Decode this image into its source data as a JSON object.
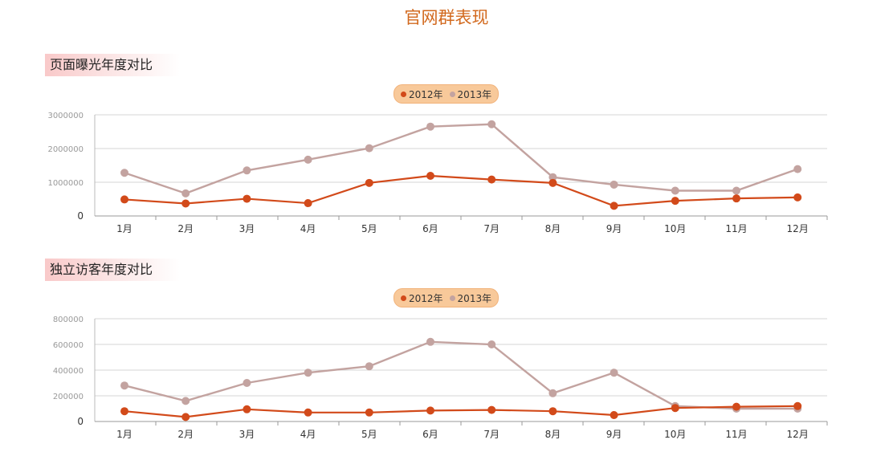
{
  "page_title": "官网群表现",
  "colors": {
    "series_2012": "#d24a1a",
    "series_2013": "#c3a3a0",
    "legend_bg": "#f8c99a"
  },
  "chart_data": [
    {
      "section_title": "页面曝光年度对比",
      "type": "line",
      "categories": [
        "1月",
        "2月",
        "3月",
        "4月",
        "5月",
        "6月",
        "7月",
        "8月",
        "9月",
        "10月",
        "11月",
        "12月"
      ],
      "ylim": [
        0,
        3000000
      ],
      "ytick_labels": [
        "0",
        "1000000",
        "2000000",
        "3000000"
      ],
      "grid": true,
      "legend_position": "top-center",
      "series": [
        {
          "name": "2012年",
          "values": [
            490000,
            370000,
            510000,
            380000,
            980000,
            1190000,
            1080000,
            980000,
            300000,
            450000,
            520000,
            550000
          ]
        },
        {
          "name": "2013年",
          "values": [
            1280000,
            670000,
            1350000,
            1670000,
            2010000,
            2650000,
            2720000,
            1150000,
            930000,
            750000,
            750000,
            1390000
          ]
        }
      ]
    },
    {
      "section_title": "独立访客年度对比",
      "type": "line",
      "categories": [
        "1月",
        "2月",
        "3月",
        "4月",
        "5月",
        "6月",
        "7月",
        "8月",
        "9月",
        "10月",
        "11月",
        "12月"
      ],
      "ylim": [
        0,
        800000
      ],
      "ytick_labels": [
        "0",
        "200000",
        "400000",
        "600000",
        "800000"
      ],
      "grid": true,
      "legend_position": "top-center",
      "series": [
        {
          "name": "2012年",
          "values": [
            80000,
            35000,
            95000,
            70000,
            70000,
            85000,
            90000,
            80000,
            50000,
            105000,
            115000,
            120000
          ]
        },
        {
          "name": "2013年",
          "values": [
            280000,
            160000,
            300000,
            380000,
            430000,
            620000,
            600000,
            220000,
            380000,
            120000,
            100000,
            100000
          ]
        }
      ]
    }
  ]
}
